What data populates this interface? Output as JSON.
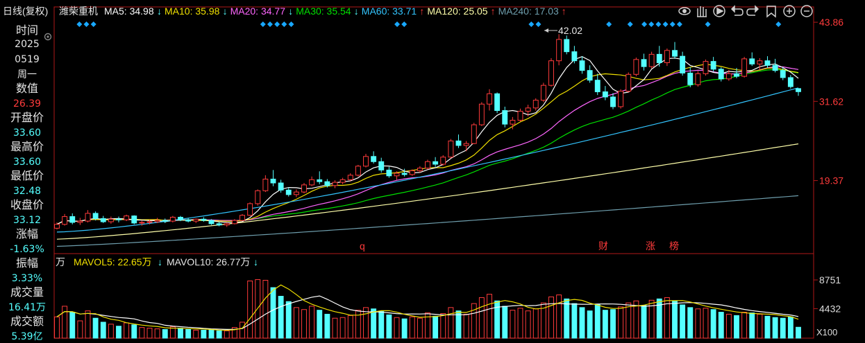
{
  "colors": {
    "up": "#ff3b3b",
    "down": "#54ffff",
    "ma5": "#ffffff",
    "ma10": "#f0e000",
    "ma20": "#ff66ff",
    "ma30": "#00e000",
    "ma60": "#33c5ff",
    "ma120": "#ffffaa",
    "ma240": "#6f9fae",
    "panel_border": "#b01818",
    "bg": "#000000",
    "marker": "#19a8ff"
  },
  "header": {
    "title": "日线(复权)",
    "stock_name": "潍柴重机",
    "ma": [
      {
        "label": "MA5: 34.98",
        "arrow": "↓",
        "color": "#ffffff",
        "arrow_color": "#54ffff"
      },
      {
        "label": "MA10: 35.98",
        "arrow": "↓",
        "color": "#f0e000",
        "arrow_color": "#54ffff"
      },
      {
        "label": "MA20: 34.77",
        "arrow": "↓",
        "color": "#ff66ff",
        "arrow_color": "#54ffff"
      },
      {
        "label": "MA30: 35.54",
        "arrow": "↓",
        "color": "#00e000",
        "arrow_color": "#54ffff"
      },
      {
        "label": "MA60: 33.71",
        "arrow": "↑",
        "color": "#33c5ff",
        "arrow_color": "#ff3b3b"
      },
      {
        "label": "MA120: 25.05",
        "arrow": "↑",
        "color": "#ffffaa",
        "arrow_color": "#ff3b3b"
      },
      {
        "label": "MA240: 17.03",
        "arrow": "↑",
        "color": "#6f9fae",
        "arrow_color": "#ff3b3b"
      }
    ]
  },
  "toolbar_icons": [
    "eye-icon",
    "hand-icon",
    "play-icon",
    "undo-icon",
    "redo-icon",
    "bookmark-icon",
    "zoom-in-icon",
    "zoom-out-icon"
  ],
  "sidebar": {
    "items": [
      {
        "label": "时间",
        "values": [
          "2025",
          "0519",
          "周一"
        ]
      },
      {
        "label": "数值",
        "values": [
          "26.39"
        ],
        "color": "#ff3b3b"
      },
      {
        "label": "开盘价",
        "values": [
          "33.60"
        ],
        "color": "#54ffff"
      },
      {
        "label": "最高价",
        "values": [
          "33.60"
        ],
        "color": "#54ffff"
      },
      {
        "label": "最低价",
        "values": [
          "32.48"
        ],
        "color": "#54ffff"
      },
      {
        "label": "收盘价",
        "values": [
          "33.12"
        ],
        "color": "#54ffff"
      },
      {
        "label": "涨幅",
        "values": [
          "-1.63%"
        ],
        "color": "#54ffff"
      },
      {
        "label": "振幅",
        "values": [
          "3.33%"
        ],
        "color": "#54ffff"
      },
      {
        "label": "成交量",
        "values": [
          "16.41万"
        ],
        "color": "#54ffff"
      },
      {
        "label": "成交额",
        "values": [
          "5.39亿"
        ],
        "color": "#54ffff"
      }
    ]
  },
  "price_axis": {
    "ticks": [
      "43.86",
      "31.62",
      "19.37"
    ],
    "tick_values": [
      43.86,
      31.62,
      19.37
    ]
  },
  "volume_axis": {
    "ticks": [
      "8751",
      "4432"
    ],
    "tick_values": [
      8751,
      4432
    ],
    "unit": "X100"
  },
  "annotations": {
    "max_label": "42.02",
    "event_labels": [
      "q",
      "财",
      "涨",
      "榜"
    ]
  },
  "volume_header": {
    "prefix": "万",
    "mavol5": "MAVOL5: 22.65万",
    "mavol5_arrow": "↓",
    "mavol10": "MAVOL10: 26.77万",
    "mavol10_arrow": "↓"
  },
  "chart_data": {
    "type": "candlestick",
    "price_ylim": [
      8.5,
      45.8
    ],
    "volume_ylim": [
      0,
      10000
    ],
    "ma_endpoints": {
      "MA5": 34.98,
      "MA10": 35.98,
      "MA20": 34.77,
      "MA30": 35.54,
      "MA60": 33.71,
      "MA120": 25.05,
      "MA240": 17.03
    },
    "candles_approx": [
      [
        12.0,
        12.9,
        11.8,
        12.6,
        3200
      ],
      [
        12.6,
        14.2,
        12.4,
        13.8,
        4800
      ],
      [
        13.8,
        14.3,
        12.6,
        12.9,
        3900
      ],
      [
        12.9,
        13.6,
        12.5,
        13.1,
        2600
      ],
      [
        13.1,
        14.8,
        12.9,
        14.3,
        4100
      ],
      [
        14.3,
        14.6,
        13.2,
        13.5,
        3000
      ],
      [
        13.5,
        13.9,
        12.8,
        13.0,
        2400
      ],
      [
        13.0,
        13.8,
        12.7,
        13.4,
        2100
      ],
      [
        13.4,
        13.8,
        12.9,
        13.3,
        1800
      ],
      [
        13.3,
        14.1,
        13.1,
        13.9,
        2300
      ],
      [
        13.9,
        14.0,
        12.6,
        12.8,
        2000
      ],
      [
        12.8,
        13.2,
        12.4,
        12.9,
        1600
      ],
      [
        12.9,
        13.3,
        12.6,
        13.0,
        1500
      ],
      [
        13.0,
        13.6,
        12.8,
        13.2,
        1400
      ],
      [
        13.2,
        13.5,
        12.8,
        13.1,
        1300
      ],
      [
        13.1,
        13.9,
        12.9,
        13.7,
        1700
      ],
      [
        13.7,
        13.9,
        13.1,
        13.3,
        1500
      ],
      [
        13.3,
        13.6,
        12.9,
        13.1,
        1300
      ],
      [
        13.1,
        13.5,
        12.8,
        13.4,
        1200
      ],
      [
        13.4,
        13.7,
        13.0,
        13.2,
        1200
      ],
      [
        13.2,
        13.4,
        12.5,
        12.7,
        1300
      ],
      [
        12.7,
        13.0,
        12.3,
        12.5,
        1100
      ],
      [
        12.5,
        12.9,
        12.2,
        12.7,
        1100
      ],
      [
        12.7,
        13.4,
        12.6,
        13.2,
        1600
      ],
      [
        13.2,
        14.2,
        13.1,
        14.0,
        2400
      ],
      [
        14.0,
        16.0,
        13.9,
        15.8,
        8600
      ],
      [
        15.8,
        18.0,
        15.5,
        17.8,
        8800
      ],
      [
        17.8,
        20.2,
        17.6,
        19.6,
        8700
      ],
      [
        19.6,
        21.0,
        18.5,
        19.0,
        7600
      ],
      [
        19.0,
        19.5,
        17.5,
        17.9,
        6300
      ],
      [
        17.9,
        18.3,
        16.9,
        17.2,
        5500
      ],
      [
        17.2,
        18.0,
        16.8,
        17.6,
        4600
      ],
      [
        17.6,
        19.0,
        17.4,
        18.7,
        4300
      ],
      [
        18.7,
        20.0,
        18.5,
        19.5,
        4800
      ],
      [
        19.5,
        20.8,
        18.8,
        19.2,
        4200
      ],
      [
        19.2,
        19.6,
        18.3,
        18.6,
        3600
      ],
      [
        18.6,
        19.4,
        18.2,
        19.1,
        3000
      ],
      [
        19.1,
        19.8,
        18.8,
        19.5,
        3100
      ],
      [
        19.5,
        20.5,
        19.3,
        20.2,
        3400
      ],
      [
        20.2,
        21.8,
        20.0,
        21.6,
        4200
      ],
      [
        21.6,
        23.5,
        21.4,
        23.1,
        4600
      ],
      [
        23.1,
        23.9,
        22.0,
        22.3,
        4400
      ],
      [
        22.3,
        22.9,
        20.6,
        21.0,
        4000
      ],
      [
        21.0,
        21.5,
        19.8,
        20.1,
        3500
      ],
      [
        20.1,
        20.8,
        19.5,
        20.5,
        3100
      ],
      [
        20.5,
        21.2,
        20.0,
        20.3,
        2900
      ],
      [
        20.3,
        21.1,
        20.1,
        20.9,
        3200
      ],
      [
        20.9,
        21.6,
        20.6,
        21.3,
        3000
      ],
      [
        21.3,
        22.6,
        21.1,
        22.3,
        3800
      ],
      [
        22.3,
        23.0,
        21.5,
        21.9,
        3300
      ],
      [
        21.9,
        23.3,
        21.7,
        23.0,
        3700
      ],
      [
        23.0,
        25.8,
        22.8,
        25.5,
        4600
      ],
      [
        25.5,
        26.5,
        24.4,
        24.8,
        4100
      ],
      [
        24.8,
        25.5,
        23.9,
        25.1,
        3600
      ],
      [
        25.1,
        28.3,
        25.0,
        28.0,
        5200
      ],
      [
        28.0,
        31.5,
        27.8,
        31.2,
        6100
      ],
      [
        31.2,
        33.5,
        30.2,
        32.8,
        6600
      ],
      [
        32.8,
        33.0,
        29.8,
        30.2,
        5600
      ],
      [
        30.2,
        30.8,
        27.6,
        28.1,
        4800
      ],
      [
        28.1,
        29.2,
        27.3,
        28.7,
        4200
      ],
      [
        28.7,
        30.5,
        28.5,
        30.1,
        4500
      ],
      [
        30.1,
        31.1,
        29.3,
        30.6,
        4100
      ],
      [
        30.6,
        32.1,
        30.2,
        31.8,
        4400
      ],
      [
        31.8,
        34.5,
        31.5,
        34.1,
        5300
      ],
      [
        34.1,
        38.3,
        33.9,
        37.9,
        6200
      ],
      [
        37.9,
        42.02,
        37.2,
        41.2,
        6500
      ],
      [
        41.2,
        41.8,
        38.9,
        39.3,
        5900
      ],
      [
        39.3,
        40.2,
        37.5,
        37.9,
        5200
      ],
      [
        37.9,
        38.6,
        35.9,
        36.4,
        4600
      ],
      [
        36.4,
        37.2,
        34.5,
        34.9,
        4100
      ],
      [
        34.9,
        35.9,
        32.6,
        33.1,
        5100
      ],
      [
        33.1,
        34.0,
        31.8,
        32.3,
        4200
      ],
      [
        32.3,
        32.9,
        30.4,
        30.8,
        4300
      ],
      [
        30.8,
        33.5,
        30.5,
        33.2,
        4700
      ],
      [
        33.2,
        36.1,
        33.0,
        35.8,
        5300
      ],
      [
        35.8,
        38.4,
        35.5,
        38.1,
        5600
      ],
      [
        38.1,
        39.0,
        36.4,
        37.0,
        4900
      ],
      [
        37.0,
        39.3,
        36.7,
        38.9,
        5700
      ],
      [
        38.9,
        40.2,
        37.0,
        37.6,
        5900
      ],
      [
        37.6,
        39.8,
        37.1,
        39.5,
        6100
      ],
      [
        39.5,
        40.8,
        38.2,
        38.6,
        5600
      ],
      [
        38.6,
        39.3,
        35.6,
        36.0,
        5000
      ],
      [
        36.0,
        36.9,
        33.8,
        34.2,
        4600
      ],
      [
        34.2,
        36.3,
        33.9,
        35.9,
        4400
      ],
      [
        35.9,
        38.1,
        35.6,
        37.8,
        4500
      ],
      [
        37.8,
        38.5,
        36.2,
        36.6,
        4300
      ],
      [
        36.6,
        36.9,
        34.7,
        35.1,
        3900
      ],
      [
        35.1,
        36.5,
        34.8,
        35.9,
        3600
      ],
      [
        35.9,
        36.8,
        35.2,
        35.5,
        3400
      ],
      [
        35.5,
        38.5,
        35.3,
        38.2,
        3900
      ],
      [
        38.2,
        39.2,
        37.1,
        37.4,
        3800
      ],
      [
        37.4,
        38.3,
        36.5,
        37.9,
        3600
      ],
      [
        37.9,
        38.6,
        36.8,
        37.2,
        3300
      ],
      [
        37.2,
        38.2,
        36.1,
        36.4,
        3100
      ],
      [
        36.4,
        36.9,
        34.9,
        35.3,
        3000
      ],
      [
        35.3,
        35.7,
        33.6,
        33.9,
        3200
      ],
      [
        33.6,
        33.6,
        32.48,
        33.12,
        1641
      ]
    ]
  }
}
